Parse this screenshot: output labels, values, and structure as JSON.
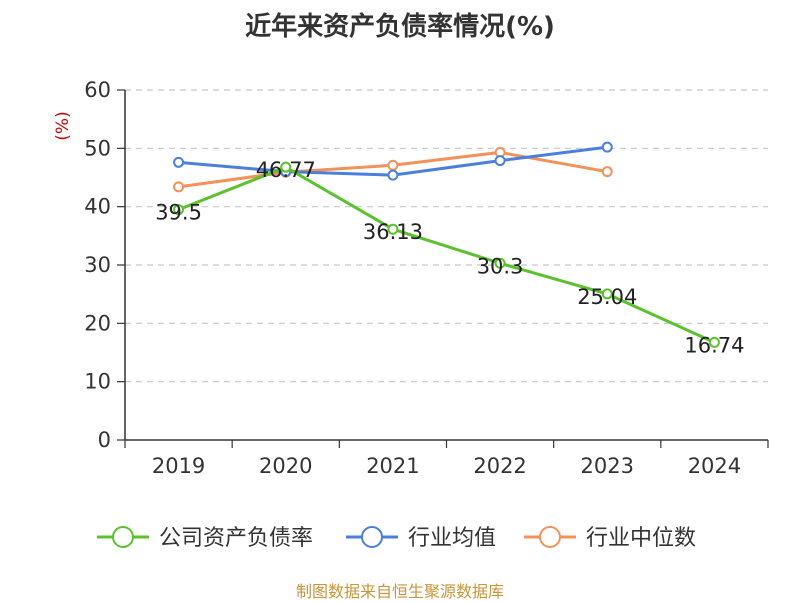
{
  "chart_data": {
    "type": "line",
    "title": "近年来资产负债率情况(%)",
    "ylabel": "(%)",
    "xlabel": "",
    "categories": [
      "2019",
      "2020",
      "2021",
      "2022",
      "2023",
      "2024"
    ],
    "ylim": [
      0,
      60
    ],
    "yticks": [
      0,
      10,
      20,
      30,
      40,
      50,
      60
    ],
    "grid": true,
    "legend_position": "bottom",
    "series": [
      {
        "name": "公司资产负债率",
        "color": "#5cc12e",
        "values": [
          39.5,
          46.77,
          36.13,
          30.3,
          25.04,
          16.74
        ],
        "labels": [
          "39.5",
          "46.77",
          "36.13",
          "30.3",
          "25.04",
          "16.74"
        ]
      },
      {
        "name": "行业均值",
        "color": "#4a7fdc",
        "values": [
          47.6,
          46.0,
          45.4,
          47.9,
          50.2,
          null
        ]
      },
      {
        "name": "行业中位数",
        "color": "#f3915a",
        "values": [
          43.4,
          45.9,
          47.1,
          49.3,
          46.0,
          null
        ]
      }
    ]
  },
  "source": "制图数据来自恒生聚源数据库"
}
